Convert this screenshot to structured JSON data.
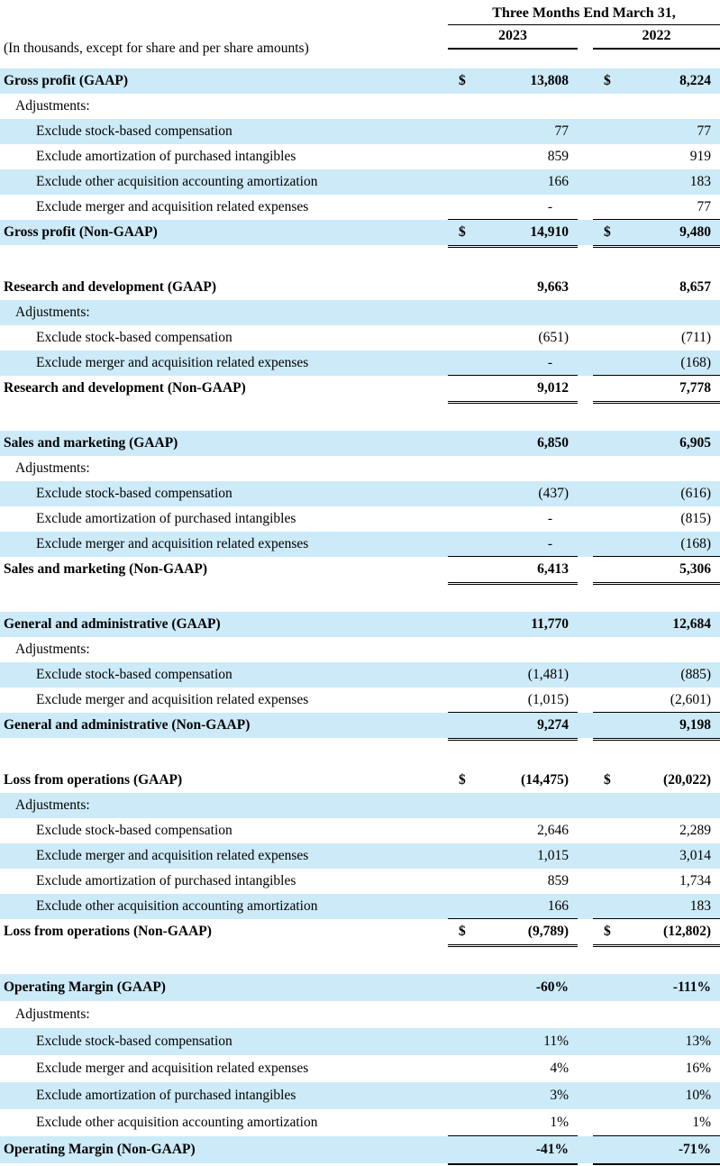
{
  "header": {
    "caption": "(In thousands, except for share and per share amounts)",
    "period": "Three Months End March 31,",
    "col2023": "2023",
    "col2022": "2022"
  },
  "colors": {
    "stripe": "#CDEAF8",
    "text": "#000000"
  },
  "sections": [
    {
      "name": "gross-profit",
      "rows": [
        {
          "label": "Gross profit (GAAP)",
          "indent": 0,
          "bold": true,
          "shaded": true,
          "cur": "$",
          "v2023": "13,808",
          "v2022": "8,224"
        },
        {
          "label": "Adjustments:",
          "indent": 1,
          "bold": false,
          "shaded": false
        },
        {
          "label": "Exclude stock-based compensation",
          "indent": 2,
          "shaded": true,
          "v2023": "77",
          "v2022": "77"
        },
        {
          "label": "Exclude amortization of purchased intangibles",
          "indent": 2,
          "shaded": false,
          "v2023": "859",
          "v2022": "919"
        },
        {
          "label": "Exclude other acquisition accounting amortization",
          "indent": 2,
          "shaded": true,
          "v2023": "166",
          "v2022": "183"
        },
        {
          "label": "Exclude merger and acquisition related expenses",
          "indent": 2,
          "shaded": false,
          "v2023": "-",
          "v2022": "77",
          "uline": true
        },
        {
          "label": "Gross profit (Non-GAAP)",
          "indent": 0,
          "bold": true,
          "shaded": true,
          "cur": "$",
          "v2023": "14,910",
          "v2022": "9,480",
          "rule": "double"
        }
      ]
    },
    {
      "name": "research-and-development",
      "rows": [
        {
          "label": "Research and development (GAAP)",
          "indent": 0,
          "bold": true,
          "shaded": false,
          "v2023": "9,663",
          "v2022": "8,657"
        },
        {
          "label": "Adjustments:",
          "indent": 1,
          "shaded": true
        },
        {
          "label": "Exclude stock-based compensation",
          "indent": 2,
          "shaded": false,
          "v2023": "(651)",
          "v2022": "(711)"
        },
        {
          "label": "Exclude merger and acquisition related expenses",
          "indent": 2,
          "shaded": true,
          "v2023": "-",
          "v2022": "(168)",
          "uline": true
        },
        {
          "label": "Research and development (Non-GAAP)",
          "indent": 0,
          "bold": true,
          "shaded": false,
          "v2023": "9,012",
          "v2022": "7,778",
          "rule": "double"
        }
      ]
    },
    {
      "name": "sales-and-marketing",
      "rows": [
        {
          "label": "Sales and marketing (GAAP)",
          "indent": 0,
          "bold": true,
          "shaded": true,
          "v2023": "6,850",
          "v2022": "6,905"
        },
        {
          "label": "Adjustments:",
          "indent": 1,
          "shaded": false
        },
        {
          "label": "Exclude stock-based compensation",
          "indent": 2,
          "shaded": true,
          "v2023": "(437)",
          "v2022": "(616)"
        },
        {
          "label": "Exclude amortization of purchased intangibles",
          "indent": 2,
          "shaded": false,
          "v2023": "-",
          "v2022": "(815)"
        },
        {
          "label": "Exclude merger and acquisition related expenses",
          "indent": 2,
          "shaded": true,
          "v2023": "-",
          "v2022": "(168)",
          "uline": true
        },
        {
          "label": "Sales and marketing (Non-GAAP)",
          "indent": 0,
          "bold": true,
          "shaded": false,
          "v2023": "6,413",
          "v2022": "5,306",
          "rule": "double"
        }
      ]
    },
    {
      "name": "general-and-administrative",
      "rows": [
        {
          "label": "General and administrative (GAAP)",
          "indent": 0,
          "bold": true,
          "shaded": true,
          "v2023": "11,770",
          "v2022": "12,684"
        },
        {
          "label": "Adjustments:",
          "indent": 1,
          "shaded": false
        },
        {
          "label": "Exclude stock-based compensation",
          "indent": 2,
          "shaded": true,
          "v2023": "(1,481)",
          "v2022": "(885)"
        },
        {
          "label": "Exclude merger and acquisition related expenses",
          "indent": 2,
          "shaded": false,
          "v2023": "(1,015)",
          "v2022": "(2,601)",
          "uline": true
        },
        {
          "label": "General and administrative (Non-GAAP)",
          "indent": 0,
          "bold": true,
          "shaded": true,
          "v2023": "9,274",
          "v2022": "9,198",
          "rule": "double"
        }
      ]
    },
    {
      "name": "loss-from-operations",
      "rows": [
        {
          "label": "Loss from operations (GAAP)",
          "indent": 0,
          "bold": true,
          "shaded": false,
          "cur": "$",
          "v2023": "(14,475)",
          "v2022": "(20,022)"
        },
        {
          "label": "Adjustments:",
          "indent": 1,
          "shaded": true
        },
        {
          "label": "Exclude stock-based compensation",
          "indent": 2,
          "shaded": false,
          "v2023": "2,646",
          "v2022": "2,289"
        },
        {
          "label": "Exclude merger and acquisition related expenses",
          "indent": 2,
          "shaded": true,
          "v2023": "1,015",
          "v2022": "3,014"
        },
        {
          "label": "Exclude amortization of purchased intangibles",
          "indent": 2,
          "shaded": false,
          "v2023": "859",
          "v2022": "1,734"
        },
        {
          "label": "Exclude other acquisition accounting amortization",
          "indent": 2,
          "shaded": true,
          "v2023": "166",
          "v2022": "183",
          "uline": true
        },
        {
          "label": "Loss from operations (Non-GAAP)",
          "indent": 0,
          "bold": true,
          "shaded": false,
          "cur": "$",
          "v2023": "(9,789)",
          "v2022": "(12,802)",
          "rule": "double"
        }
      ]
    },
    {
      "name": "operating-margin",
      "tall": true,
      "rows": [
        {
          "label": "Operating Margin (GAAP)",
          "indent": 0,
          "bold": true,
          "shaded": true,
          "v2023": "-60%",
          "v2022": "-111%"
        },
        {
          "label": "Adjustments:",
          "indent": 1,
          "shaded": false
        },
        {
          "label": "Exclude stock-based compensation",
          "indent": 2,
          "shaded": true,
          "v2023": "11%",
          "v2022": "13%"
        },
        {
          "label": "Exclude merger and acquisition related expenses",
          "indent": 2,
          "shaded": false,
          "v2023": "4%",
          "v2022": "16%"
        },
        {
          "label": "Exclude amortization of purchased intangibles",
          "indent": 2,
          "shaded": true,
          "v2023": "3%",
          "v2022": "10%"
        },
        {
          "label": "Exclude other acquisition accounting amortization",
          "indent": 2,
          "shaded": false,
          "v2023": "1%",
          "v2022": "1%",
          "uline": true
        },
        {
          "label": "Operating Margin (Non-GAAP)",
          "indent": 0,
          "bold": true,
          "shaded": true,
          "v2023": "-41%",
          "v2022": "-71%",
          "rule": "single"
        }
      ]
    }
  ]
}
